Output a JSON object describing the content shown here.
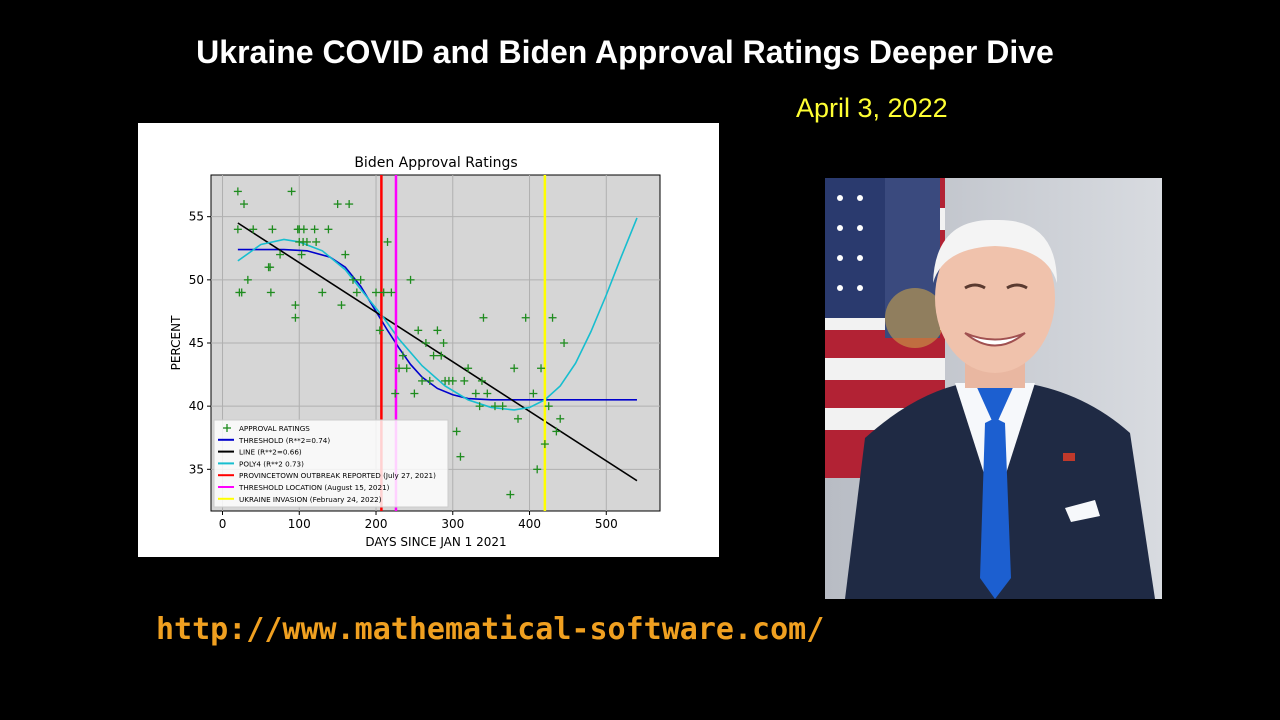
{
  "header": {
    "title": "Ukraine COVID and Biden Approval Ratings Deeper Dive",
    "date": "April 3, 2022"
  },
  "footer": {
    "url": "http://www.mathematical-software.com/"
  },
  "colors": {
    "points": "#1f8c1f",
    "threshold": "#0000cc",
    "line": "#000000",
    "poly4": "#17becf",
    "outbreak": "#ff0000",
    "threshold_location": "#ff00ff",
    "invasion": "#ffff00",
    "title_text": "#ffffff",
    "date_text": "#ffff33",
    "url_text": "#f0a020"
  },
  "chart_data": {
    "type": "scatter",
    "title": "Biden Approval Ratings",
    "xlabel": "DAYS SINCE JAN 1 2021",
    "ylabel": "PERCENT",
    "xlim": [
      -15,
      570
    ],
    "ylim": [
      31.7,
      58.3
    ],
    "xticks": [
      0,
      100,
      200,
      300,
      400,
      500
    ],
    "yticks": [
      35,
      40,
      45,
      50,
      55
    ],
    "grid": true,
    "legend_position": "lower-left",
    "points": {
      "name": "APPROVAL RATINGS",
      "x": [
        20,
        20,
        22,
        25,
        28,
        33,
        40,
        60,
        62,
        63,
        65,
        75,
        90,
        95,
        95,
        98,
        100,
        100,
        103,
        105,
        106,
        110,
        120,
        122,
        130,
        138,
        150,
        155,
        160,
        165,
        170,
        175,
        180,
        200,
        205,
        210,
        215,
        220,
        225,
        230,
        235,
        240,
        245,
        250,
        255,
        260,
        265,
        270,
        275,
        280,
        285,
        288,
        290,
        295,
        300,
        305,
        310,
        315,
        320,
        330,
        335,
        338,
        340,
        345,
        355,
        365,
        375,
        380,
        385,
        395,
        405,
        410,
        415,
        420,
        425,
        430,
        435,
        440,
        445
      ],
      "y": [
        57,
        54,
        49,
        49,
        56,
        50,
        54,
        51,
        51,
        49,
        54,
        52,
        57,
        48,
        47,
        54,
        53,
        54,
        52,
        53,
        54,
        53,
        54,
        53,
        49,
        54,
        56,
        48,
        52,
        56,
        50,
        49,
        50,
        49,
        46,
        49,
        53,
        49,
        41,
        43,
        44,
        43,
        50,
        41,
        46,
        42,
        45,
        42,
        44,
        46,
        44,
        45,
        42,
        42,
        42,
        38,
        36,
        42,
        43,
        41,
        40,
        42,
        47,
        41,
        40,
        40,
        33,
        43,
        39,
        47,
        41,
        35,
        43,
        37,
        40,
        47,
        38,
        39,
        45
      ]
    },
    "series": [
      {
        "name": "THRESHOLD  (R**2=0.74)",
        "x": [
          20,
          50,
          80,
          110,
          140,
          160,
          180,
          200,
          215,
          230,
          245,
          260,
          280,
          300,
          320,
          350,
          400,
          450,
          500,
          540
        ],
        "y": [
          52.4,
          52.4,
          52.4,
          52.3,
          51.8,
          51.0,
          49.5,
          47.5,
          46.0,
          44.6,
          43.3,
          42.3,
          41.4,
          40.9,
          40.6,
          40.5,
          40.5,
          40.5,
          40.5,
          40.5
        ]
      },
      {
        "name": "LINE  (R**2=0.66)",
        "x": [
          20,
          540
        ],
        "y": [
          54.5,
          34.1
        ]
      },
      {
        "name": "POLY4 (R**2 0.73)",
        "x": [
          20,
          50,
          80,
          100,
          130,
          160,
          190,
          210,
          230,
          260,
          290,
          320,
          350,
          380,
          400,
          420,
          440,
          460,
          480,
          500,
          520,
          540
        ],
        "y": [
          51.5,
          52.8,
          53.2,
          53.0,
          52.3,
          50.8,
          48.5,
          47.0,
          45.3,
          43.2,
          41.6,
          40.5,
          39.9,
          39.7,
          39.9,
          40.5,
          41.6,
          43.4,
          45.9,
          48.8,
          51.9,
          54.9
        ]
      }
    ],
    "vlines": [
      {
        "name": "PROVINCETOWN OUTBREAK REPORTED (July 27, 2021)",
        "x": 207
      },
      {
        "name": "THRESHOLD LOCATION (August 15, 2021)",
        "x": 226
      },
      {
        "name": "UKRAINE INVASION (February 24, 2022)",
        "x": 420
      }
    ],
    "legend": [
      "APPROVAL RATINGS",
      "THRESHOLD  (R**2=0.74)",
      "LINE  (R**2=0.66)",
      "POLY4 (R**2 0.73)",
      "PROVINCETOWN OUTBREAK REPORTED (July 27, 2021)",
      "THRESHOLD LOCATION (August 15, 2021)",
      "UKRAINE INVASION (February 24, 2022)"
    ]
  }
}
